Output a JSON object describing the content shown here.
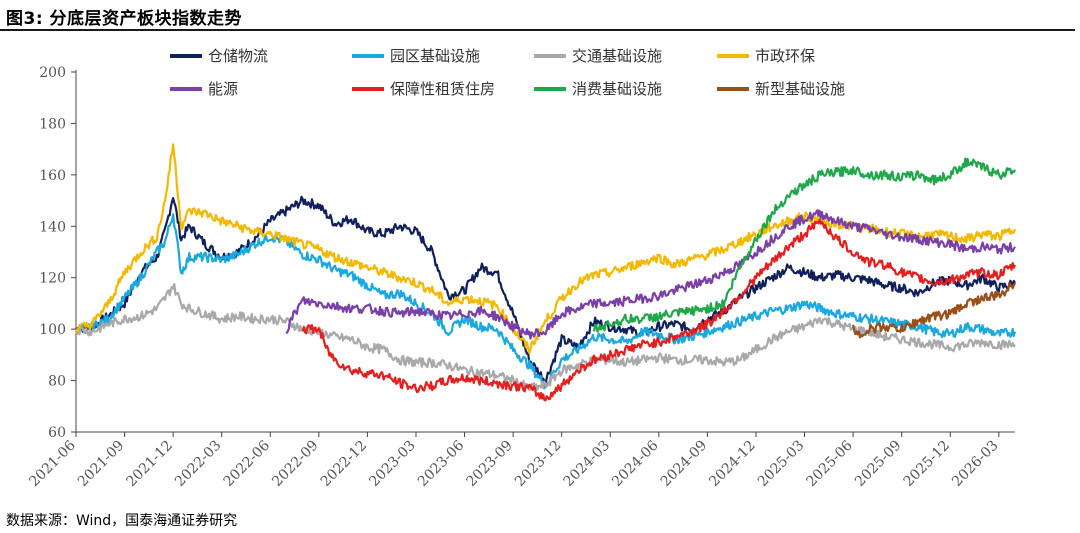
{
  "header": {
    "title": "图3:  分底层资产板块指数走势"
  },
  "footer": {
    "source": "数据来源：Wind，国泰海通证券研究"
  },
  "colors": {
    "仓储物流": "#10205c",
    "园区基础设施": "#1aa8e0",
    "交通基础设施": "#a9a9a9",
    "市政环保": "#f5b800",
    "能源": "#7a3fa8",
    "保障性租赁住房": "#e61e1e",
    "消费基础设施": "#1fa84a",
    "新型基础设施": "#9a4f18"
  },
  "chart_data": {
    "type": "line",
    "title": "分底层资产板块指数走势",
    "xlabel": "",
    "ylabel": "",
    "ylim": [
      60,
      200
    ],
    "yticks": [
      60,
      80,
      100,
      120,
      140,
      160,
      180,
      200
    ],
    "x_start": "2021-06",
    "x_end": "2026-04",
    "x_tick_labels": [
      "2021-06",
      "2021-09",
      "2021-12",
      "2022-03",
      "2022-06",
      "2022-09",
      "2022-12",
      "2023-03",
      "2023-06",
      "2023-09",
      "2023-12",
      "2024-03",
      "2024-06",
      "2024-09",
      "2024-12",
      "2025-03",
      "2025-06",
      "2025-09",
      "2025-12",
      "2026-03"
    ],
    "legend_position": "top",
    "series": [
      {
        "name": "仓储物流",
        "x": [
          0,
          1,
          2,
          3,
          4,
          5,
          5.5,
          6,
          6.5,
          7,
          8,
          9,
          10,
          11,
          12,
          13,
          14,
          15,
          16,
          17,
          18,
          19,
          20,
          21,
          22,
          23,
          24,
          25,
          26,
          27,
          28,
          29,
          30,
          31,
          32,
          33,
          34,
          35,
          36,
          37,
          38,
          39,
          40,
          41,
          42,
          43,
          44,
          45,
          46,
          47,
          48,
          49,
          50,
          51,
          52,
          53,
          54,
          55,
          56,
          57,
          58
        ],
        "y": [
          100,
          101,
          105,
          110,
          122,
          128,
          138,
          152,
          135,
          140,
          133,
          128,
          130,
          135,
          142,
          146,
          150,
          148,
          141,
          143,
          138,
          137,
          140,
          138,
          130,
          113,
          115,
          124,
          122,
          106,
          88,
          80,
          96,
          93,
          103,
          101,
          100,
          98,
          101,
          102,
          100,
          104,
          107,
          112,
          116,
          120,
          124,
          122,
          120,
          121,
          120,
          119,
          117,
          116,
          114,
          118,
          119,
          117,
          120,
          116,
          118
        ]
      },
      {
        "name": "园区基础设施",
        "x": [
          0,
          1,
          2,
          3,
          4,
          5,
          5.5,
          6,
          6.5,
          7,
          8,
          9,
          10,
          11,
          12,
          13,
          14,
          15,
          16,
          17,
          18,
          19,
          20,
          21,
          22,
          23,
          24,
          25,
          26,
          27,
          28,
          29,
          30,
          31,
          32,
          33,
          34,
          35,
          36,
          37,
          38,
          39,
          40,
          41,
          42,
          43,
          44,
          45,
          46,
          47,
          48,
          49,
          50,
          51,
          52,
          53,
          54,
          55,
          56,
          57,
          58
        ],
        "y": [
          100,
          101,
          104,
          112,
          120,
          130,
          134,
          145,
          122,
          128,
          128,
          127,
          129,
          133,
          136,
          134,
          129,
          127,
          123,
          121,
          117,
          113,
          114,
          110,
          106,
          99,
          104,
          101,
          100,
          92,
          86,
          78,
          88,
          92,
          97,
          96,
          95,
          99,
          98,
          96,
          97,
          99,
          101,
          103,
          105,
          107,
          108,
          110,
          108,
          106,
          105,
          104,
          103,
          102,
          101,
          99,
          98,
          101,
          100,
          98,
          99
        ]
      },
      {
        "name": "交通基础设施",
        "x": [
          0,
          1,
          2,
          3,
          4,
          5,
          5.5,
          6,
          6.5,
          7,
          8,
          9,
          10,
          11,
          12,
          13,
          14,
          15,
          16,
          17,
          18,
          19,
          20,
          21,
          22,
          23,
          24,
          25,
          26,
          27,
          28,
          29,
          30,
          31,
          32,
          33,
          34,
          35,
          36,
          37,
          38,
          39,
          40,
          41,
          42,
          43,
          44,
          45,
          46,
          47,
          48,
          49,
          50,
          51,
          52,
          53,
          54,
          55,
          56,
          57,
          58
        ],
        "y": [
          100,
          99,
          102,
          104,
          105,
          108,
          112,
          117,
          110,
          108,
          106,
          104,
          105,
          104,
          104,
          103,
          100,
          99,
          97,
          96,
          93,
          92,
          88,
          87,
          87,
          86,
          84,
          83,
          82,
          80,
          77,
          78,
          84,
          86,
          88,
          88,
          87,
          88,
          89,
          88,
          88,
          88,
          87,
          88,
          92,
          96,
          99,
          101,
          104,
          102,
          100,
          99,
          97,
          96,
          95,
          94,
          93,
          94,
          95,
          94,
          94
        ]
      },
      {
        "name": "市政环保",
        "x": [
          0,
          1,
          2,
          3,
          4,
          5,
          5.5,
          6,
          6.5,
          7,
          8,
          9,
          10,
          11,
          12,
          13,
          14,
          15,
          16,
          17,
          18,
          19,
          20,
          21,
          22,
          23,
          24,
          25,
          26,
          27,
          28,
          29,
          30,
          31,
          32,
          33,
          34,
          35,
          36,
          37,
          38,
          39,
          40,
          41,
          42,
          43,
          44,
          45,
          46,
          47,
          48,
          49,
          50,
          51,
          52,
          53,
          54,
          55,
          56,
          57,
          58
        ],
        "y": [
          100,
          102,
          110,
          122,
          130,
          136,
          150,
          172,
          140,
          146,
          145,
          142,
          140,
          138,
          137,
          135,
          133,
          131,
          128,
          126,
          124,
          122,
          120,
          118,
          115,
          110,
          112,
          111,
          109,
          100,
          92,
          103,
          112,
          118,
          121,
          122,
          124,
          126,
          128,
          125,
          127,
          129,
          131,
          134,
          137,
          140,
          142,
          144,
          142,
          141,
          140,
          139,
          138,
          137,
          136,
          137,
          136,
          135,
          137,
          136,
          139
        ]
      },
      {
        "name": "能源",
        "x": [
          13,
          13.5,
          14,
          15,
          16,
          17,
          18,
          19,
          20,
          21,
          22,
          23,
          24,
          25,
          26,
          27,
          28,
          29,
          30,
          31,
          32,
          33,
          34,
          35,
          36,
          37,
          38,
          39,
          40,
          41,
          42,
          43,
          44,
          45,
          46,
          47,
          48,
          49,
          50,
          51,
          52,
          53,
          54,
          55,
          56,
          57,
          58
        ],
        "y": [
          100,
          106,
          111,
          110,
          109,
          108,
          108,
          107,
          106,
          107,
          106,
          105,
          106,
          107,
          105,
          101,
          98,
          99,
          106,
          108,
          110,
          110,
          111,
          112,
          113,
          115,
          117,
          119,
          122,
          125,
          130,
          135,
          140,
          143,
          145,
          142,
          140,
          139,
          137,
          136,
          135,
          134,
          133,
          131,
          132,
          131,
          132
        ]
      },
      {
        "name": "保障性租赁住房",
        "x": [
          14,
          15,
          15.5,
          16,
          17,
          18,
          19,
          20,
          21,
          22,
          23,
          24,
          25,
          26,
          27,
          28,
          29,
          30,
          31,
          32,
          33,
          34,
          35,
          36,
          37,
          38,
          39,
          40,
          41,
          42,
          43,
          44,
          45,
          46,
          47,
          48,
          49,
          50,
          51,
          52,
          53,
          54,
          55,
          56,
          57,
          58
        ],
        "y": [
          100,
          100,
          92,
          88,
          84,
          83,
          82,
          79,
          77,
          78,
          80,
          81,
          80,
          79,
          78,
          77,
          73,
          78,
          84,
          88,
          90,
          92,
          94,
          95,
          97,
          99,
          102,
          107,
          113,
          120,
          126,
          132,
          137,
          142,
          135,
          130,
          126,
          125,
          122,
          120,
          118,
          119,
          121,
          122,
          121,
          125
        ]
      },
      {
        "name": "消费基础设施",
        "x": [
          32,
          33,
          34,
          35,
          36,
          37,
          38,
          39,
          40,
          41,
          42,
          43,
          44,
          45,
          46,
          47,
          48,
          49,
          50,
          51,
          52,
          53,
          54,
          55,
          56,
          57,
          58
        ],
        "y": [
          100,
          102,
          104,
          104,
          105,
          106,
          107,
          108,
          110,
          124,
          135,
          145,
          152,
          156,
          160,
          161,
          162,
          160,
          160,
          159,
          160,
          158,
          160,
          165,
          163,
          160,
          162
        ]
      },
      {
        "name": "新型基础设施",
        "x": [
          48,
          48.5,
          49,
          50,
          51,
          52,
          53,
          54,
          55,
          56,
          57,
          58
        ],
        "y": [
          100,
          98,
          100,
          101,
          100,
          103,
          105,
          106,
          110,
          112,
          113,
          118
        ]
      }
    ]
  }
}
